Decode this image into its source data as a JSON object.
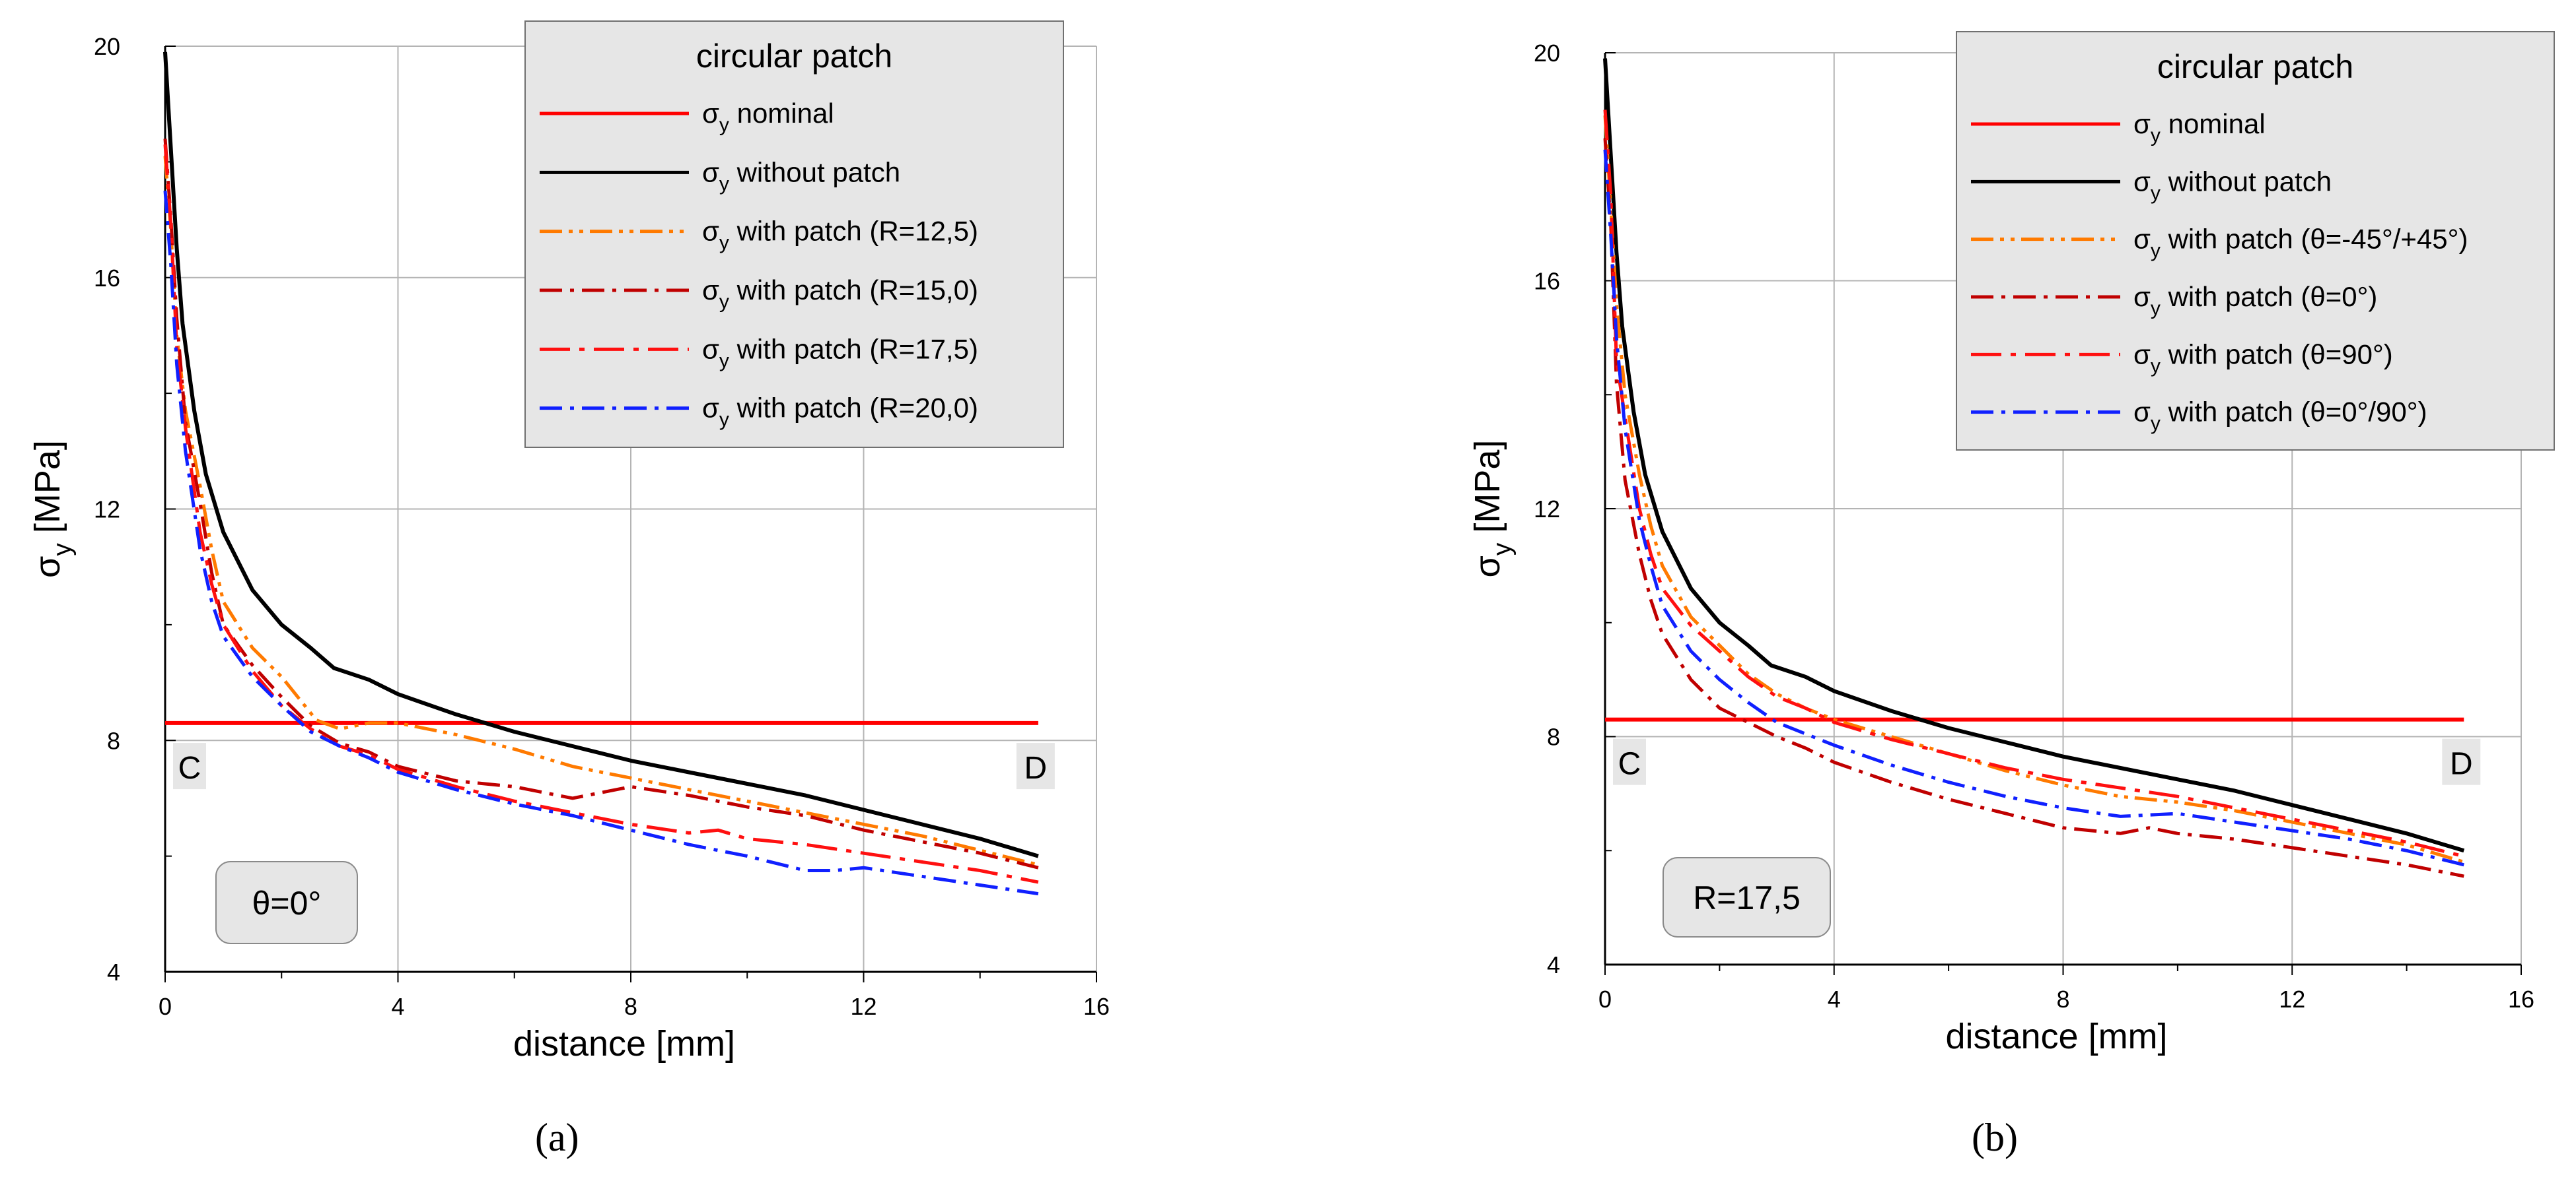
{
  "chart_data": [
    {
      "type": "line",
      "panel_label": "(a)",
      "xlabel": "distance [mm]",
      "ylabel_base": "σ",
      "ylabel_sub": "y",
      "ylabel_unit": " [MPa]",
      "xlim": [
        0,
        16
      ],
      "ylim": [
        4,
        20
      ],
      "xticks": [
        "0",
        "4",
        "8",
        "12",
        "16"
      ],
      "yticks": [
        "4",
        "8",
        "12",
        "16",
        "20"
      ],
      "point_c": "C",
      "point_d": "D",
      "annotation": "θ=0°",
      "legend_title": "circular patch",
      "series": [
        {
          "name": "nominal",
          "label_pre": "σ",
          "label_sub": "y",
          "label_post": " nominal",
          "color": "#ff0000",
          "dash": "solid",
          "x": [
            0,
            15
          ],
          "y": [
            8.3,
            8.3
          ]
        },
        {
          "name": "without patch",
          "label_pre": "σ",
          "label_sub": "y",
          "label_post": " without patch",
          "color": "#000000",
          "dash": "solid",
          "x": [
            0,
            0.1,
            0.2,
            0.3,
            0.5,
            0.7,
            1.0,
            1.5,
            2.0,
            2.5,
            2.9,
            3.5,
            4.0,
            5.0,
            6.0,
            7.0,
            8.0,
            9.0,
            10.0,
            11.0,
            12.0,
            13.0,
            14.0,
            15.0
          ],
          "y": [
            19.9,
            18.2,
            16.5,
            15.2,
            13.7,
            12.6,
            11.6,
            10.6,
            10.0,
            9.6,
            9.25,
            9.05,
            8.8,
            8.45,
            8.15,
            7.9,
            7.65,
            7.45,
            7.25,
            7.05,
            6.8,
            6.55,
            6.3,
            6.0
          ]
        },
        {
          "name": "R=12,5",
          "label_pre": "σ",
          "label_sub": "y",
          "label_post": " with patch (R=12,5)",
          "color": "#ff7a00",
          "dash": "dashdotdot",
          "x": [
            0,
            0.1,
            0.2,
            0.35,
            0.6,
            0.8,
            1.0,
            1.5,
            2.0,
            2.6,
            3.0,
            3.5,
            4.0,
            5.0,
            6.0,
            7.0,
            8.0,
            9.0,
            10.0,
            11.0,
            12.0,
            13.0,
            14.0,
            15.0
          ],
          "y": [
            18.1,
            16.8,
            15.0,
            13.7,
            12.4,
            11.3,
            10.4,
            9.6,
            9.1,
            8.35,
            8.2,
            8.3,
            8.3,
            8.1,
            7.85,
            7.55,
            7.35,
            7.15,
            6.95,
            6.75,
            6.55,
            6.35,
            6.1,
            5.85
          ]
        },
        {
          "name": "R=15,0",
          "label_pre": "σ",
          "label_sub": "y",
          "label_post": " with patch (R=15,0)",
          "color": "#c00000",
          "dash": "dashdot",
          "x": [
            0,
            0.1,
            0.2,
            0.35,
            0.6,
            0.8,
            1.0,
            1.5,
            2.0,
            2.5,
            3.0,
            3.5,
            4.0,
            5.0,
            6.0,
            7.0,
            8.0,
            9.0,
            10.0,
            11.0,
            12.0,
            13.0,
            14.0,
            15.0
          ],
          "y": [
            18.4,
            17.0,
            15.3,
            13.5,
            12.1,
            10.9,
            10.0,
            9.3,
            8.75,
            8.25,
            7.95,
            7.8,
            7.55,
            7.3,
            7.2,
            7.0,
            7.2,
            7.05,
            6.85,
            6.7,
            6.45,
            6.25,
            6.05,
            5.8
          ]
        },
        {
          "name": "R=17,5",
          "label_pre": "σ",
          "label_sub": "y",
          "label_post": " with patch (R=17,5)",
          "color": "#ff1010",
          "dash": "longdashdot",
          "x": [
            0,
            0.1,
            0.2,
            0.35,
            0.6,
            0.8,
            1.0,
            1.5,
            2.0,
            2.5,
            3.0,
            3.5,
            4.0,
            5.0,
            6.0,
            7.0,
            8.0,
            9.0,
            9.5,
            10.0,
            11.0,
            12.0,
            13.0,
            14.0,
            15.0
          ],
          "y": [
            18.3,
            16.9,
            14.8,
            13.4,
            11.6,
            10.7,
            10.0,
            9.2,
            8.6,
            8.2,
            7.9,
            7.75,
            7.5,
            7.2,
            6.95,
            6.75,
            6.55,
            6.4,
            6.45,
            6.3,
            6.2,
            6.05,
            5.9,
            5.75,
            5.55
          ]
        },
        {
          "name": "R=20,0",
          "label_pre": "σ",
          "label_sub": "y",
          "label_post": " with patch (R=20,0)",
          "color": "#1020ff",
          "dash": "dashdot",
          "x": [
            0,
            0.1,
            0.2,
            0.35,
            0.6,
            0.8,
            1.0,
            1.5,
            2.0,
            2.5,
            3.0,
            3.5,
            4.0,
            5.0,
            6.0,
            7.0,
            8.0,
            9.0,
            10.0,
            11.0,
            11.5,
            12.0,
            13.0,
            14.0,
            15.0
          ],
          "y": [
            17.5,
            16.2,
            14.5,
            13.0,
            11.3,
            10.4,
            9.8,
            9.1,
            8.6,
            8.15,
            7.9,
            7.7,
            7.45,
            7.15,
            6.9,
            6.7,
            6.45,
            6.2,
            6.0,
            5.75,
            5.75,
            5.8,
            5.65,
            5.5,
            5.35
          ]
        }
      ]
    },
    {
      "type": "line",
      "panel_label": "(b)",
      "xlabel": "distance [mm]",
      "ylabel_base": "σ",
      "ylabel_sub": "y",
      "ylabel_unit": " [MPa]",
      "xlim": [
        0,
        16
      ],
      "ylim": [
        4,
        20
      ],
      "xticks": [
        "0",
        "4",
        "8",
        "12",
        "16"
      ],
      "yticks": [
        "4",
        "8",
        "12",
        "16",
        "20"
      ],
      "point_c": "C",
      "point_d": "D",
      "annotation": "R=17,5",
      "legend_title": "circular patch",
      "series": [
        {
          "name": "nominal",
          "label_pre": "σ",
          "label_sub": "y",
          "label_post": " nominal",
          "color": "#ff0000",
          "dash": "solid",
          "x": [
            0,
            15
          ],
          "y": [
            8.3,
            8.3
          ]
        },
        {
          "name": "without patch",
          "label_pre": "σ",
          "label_sub": "y",
          "label_post": " without patch",
          "color": "#000000",
          "dash": "solid",
          "x": [
            0,
            0.1,
            0.2,
            0.3,
            0.5,
            0.7,
            1.0,
            1.5,
            2.0,
            2.5,
            2.9,
            3.5,
            4.0,
            5.0,
            6.0,
            7.0,
            8.0,
            9.0,
            10.0,
            11.0,
            12.0,
            13.0,
            14.0,
            15.0
          ],
          "y": [
            19.9,
            18.2,
            16.5,
            15.2,
            13.7,
            12.6,
            11.6,
            10.6,
            10.0,
            9.6,
            9.25,
            9.05,
            8.8,
            8.45,
            8.15,
            7.9,
            7.65,
            7.45,
            7.25,
            7.05,
            6.8,
            6.55,
            6.3,
            6.0
          ]
        },
        {
          "name": "θ=-45°/+45°",
          "label_pre": "σ",
          "label_sub": "y",
          "label_post": " with patch (θ=-45°/+45°)",
          "color": "#ff7a00",
          "dash": "dashdotdot",
          "x": [
            0,
            0.1,
            0.2,
            0.35,
            0.6,
            0.8,
            1.0,
            1.5,
            2.0,
            2.5,
            3.0,
            3.5,
            4.0,
            5.0,
            6.0,
            7.0,
            8.0,
            9.0,
            10.0,
            11.0,
            12.0,
            13.0,
            14.0,
            15.0
          ],
          "y": [
            18.9,
            17.3,
            15.6,
            14.0,
            12.6,
            11.7,
            11.0,
            10.1,
            9.6,
            9.1,
            8.75,
            8.5,
            8.3,
            8.0,
            7.7,
            7.4,
            7.15,
            6.95,
            6.85,
            6.7,
            6.5,
            6.3,
            6.1,
            5.8
          ]
        },
        {
          "name": "θ=0°",
          "label_pre": "σ",
          "label_sub": "y",
          "label_post": " with patch (θ=0°)",
          "color": "#c00000",
          "dash": "dashdot",
          "x": [
            0,
            0.1,
            0.2,
            0.35,
            0.6,
            0.8,
            1.0,
            1.5,
            2.0,
            2.5,
            3.0,
            3.5,
            4.0,
            5.0,
            6.0,
            7.0,
            8.0,
            9.0,
            9.5,
            10.0,
            11.0,
            12.0,
            13.0,
            14.0,
            15.0
          ],
          "y": [
            18.5,
            17.0,
            14.2,
            12.5,
            11.2,
            10.4,
            9.8,
            9.0,
            8.5,
            8.25,
            8.0,
            7.8,
            7.55,
            7.2,
            6.9,
            6.65,
            6.4,
            6.3,
            6.4,
            6.3,
            6.2,
            6.05,
            5.9,
            5.75,
            5.55
          ]
        },
        {
          "name": "θ=90°",
          "label_pre": "σ",
          "label_sub": "y",
          "label_post": " with patch (θ=90°)",
          "color": "#ff1010",
          "dash": "longdashdot",
          "x": [
            0,
            0.1,
            0.2,
            0.35,
            0.6,
            0.8,
            1.0,
            1.5,
            2.0,
            2.5,
            3.0,
            3.5,
            4.0,
            5.0,
            6.0,
            7.0,
            8.0,
            9.0,
            10.0,
            11.0,
            12.0,
            13.0,
            14.0,
            15.0
          ],
          "y": [
            19.0,
            17.5,
            14.6,
            13.6,
            12.0,
            11.2,
            10.6,
            9.95,
            9.5,
            9.05,
            8.7,
            8.5,
            8.25,
            7.95,
            7.7,
            7.45,
            7.25,
            7.1,
            6.95,
            6.75,
            6.55,
            6.35,
            6.15,
            5.9
          ]
        },
        {
          "name": "θ=0°/90°",
          "label_pre": "σ",
          "label_sub": "y",
          "label_post": " with patch (θ=0°/90°)",
          "color": "#1020ff",
          "dash": "dashdot",
          "x": [
            0,
            0.1,
            0.2,
            0.35,
            0.6,
            0.8,
            1.0,
            1.5,
            2.0,
            2.5,
            3.0,
            3.5,
            4.0,
            5.0,
            6.0,
            7.0,
            8.0,
            9.0,
            10.0,
            11.0,
            12.0,
            13.0,
            14.0,
            15.0
          ],
          "y": [
            18.3,
            16.8,
            15.0,
            13.4,
            11.8,
            11.0,
            10.3,
            9.5,
            9.0,
            8.6,
            8.25,
            8.05,
            7.85,
            7.5,
            7.2,
            6.95,
            6.75,
            6.6,
            6.65,
            6.5,
            6.35,
            6.2,
            6.0,
            5.75
          ]
        }
      ]
    }
  ]
}
